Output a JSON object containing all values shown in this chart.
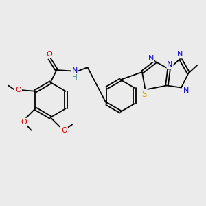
{
  "background_color": "#ebebeb",
  "bond_color": "#000000",
  "atom_colors": {
    "O": "#dd0000",
    "N": "#0000cc",
    "S": "#ccaa00",
    "H": "#4a8888",
    "C": "#000000"
  },
  "figsize": [
    3.0,
    3.0
  ],
  "dpi": 100
}
